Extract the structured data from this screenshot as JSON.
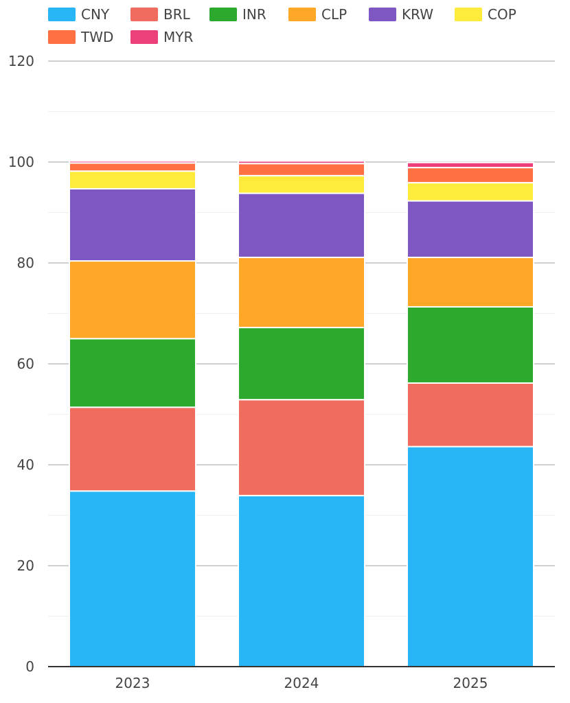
{
  "chart_data": {
    "type": "bar",
    "stacked": true,
    "categories": [
      "2023",
      "2024",
      "2025"
    ],
    "series": [
      {
        "name": "CNY",
        "color": "#29B6F6",
        "values": [
          34.8,
          33.9,
          43.6
        ]
      },
      {
        "name": "BRL",
        "color": "#EF6C5E",
        "values": [
          16.6,
          19.0,
          12.6
        ]
      },
      {
        "name": "INR",
        "color": "#2DAA2D",
        "values": [
          13.6,
          14.3,
          15.1
        ]
      },
      {
        "name": "CLP",
        "color": "#FFA726",
        "values": [
          15.4,
          13.9,
          9.8
        ]
      },
      {
        "name": "KRW",
        "color": "#7E57C2",
        "values": [
          14.3,
          12.7,
          11.2
        ]
      },
      {
        "name": "COP",
        "color": "#FFEB3B",
        "values": [
          3.5,
          3.5,
          3.6
        ]
      },
      {
        "name": "TWD",
        "color": "#FF7043",
        "values": [
          1.6,
          2.4,
          3.0
        ]
      },
      {
        "name": "MYR",
        "color": "#EC407A",
        "values": [
          0.4,
          0.5,
          1.0
        ]
      }
    ],
    "yaxis": {
      "min": 0,
      "max": 120,
      "ticks": [
        0,
        20,
        40,
        60,
        80,
        100,
        120
      ],
      "minor_step": 10
    },
    "grid": true,
    "legend_position": "top-left",
    "title": "",
    "xlabel": "",
    "ylabel": ""
  }
}
